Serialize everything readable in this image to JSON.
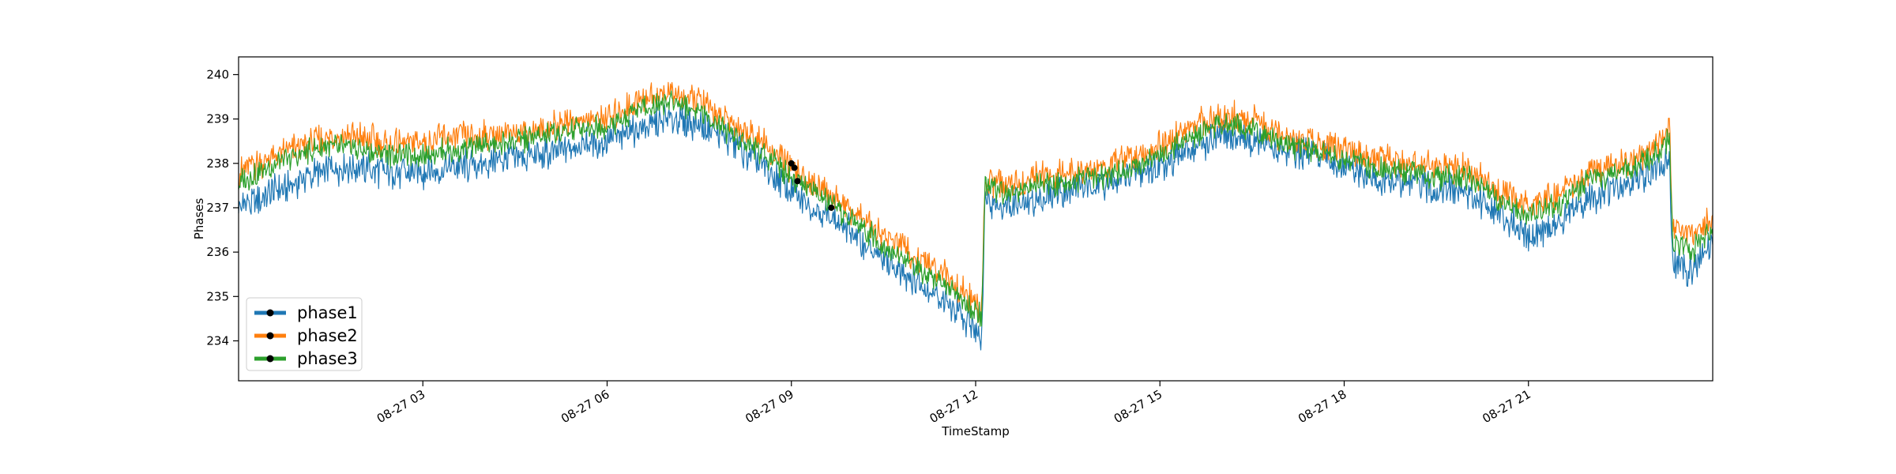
{
  "chart_data": {
    "type": "line",
    "title": "",
    "xlabel": "TimeStamp",
    "ylabel": "Phases",
    "xlim": [
      "08-27 00:00",
      "08-27 24:00"
    ],
    "ylim": [
      233.1,
      240.4
    ],
    "grid": false,
    "legend_position": "lower-left",
    "x_ticks": [
      {
        "label": "08-27 03",
        "hour": 3
      },
      {
        "label": "08-27 06",
        "hour": 6
      },
      {
        "label": "08-27 09",
        "hour": 9
      },
      {
        "label": "08-27 12",
        "hour": 12
      },
      {
        "label": "08-27 15",
        "hour": 15
      },
      {
        "label": "08-27 18",
        "hour": 18
      },
      {
        "label": "08-27 21",
        "hour": 21
      }
    ],
    "y_ticks": [
      234,
      235,
      236,
      237,
      238,
      239,
      240
    ],
    "x_hours": [
      0,
      0.5,
      1,
      1.5,
      2,
      2.5,
      3,
      3.5,
      4,
      4.5,
      5,
      5.5,
      6,
      6.5,
      7,
      7.5,
      8,
      8.5,
      9,
      9.5,
      10,
      10.5,
      11,
      11.5,
      12.1,
      12.15,
      12.5,
      13,
      13.5,
      14,
      14.5,
      15,
      15.5,
      16,
      16.5,
      17,
      17.5,
      18,
      18.5,
      19,
      19.5,
      20,
      20.5,
      21,
      21.5,
      22,
      22.5,
      23,
      23.3,
      23.35,
      23.7,
      24
    ],
    "series": [
      {
        "name": "phase1",
        "color": "#1f77b4",
        "values": [
          237.0,
          237.3,
          237.6,
          237.9,
          237.9,
          237.8,
          237.8,
          237.9,
          238.0,
          238.1,
          238.2,
          238.4,
          238.5,
          238.8,
          239.0,
          238.9,
          238.5,
          238.0,
          237.3,
          236.9,
          236.4,
          235.8,
          235.4,
          234.9,
          234.1,
          237.2,
          237.0,
          237.2,
          237.4,
          237.5,
          237.7,
          237.9,
          238.3,
          238.6,
          238.5,
          238.3,
          238.2,
          237.9,
          237.6,
          237.6,
          237.4,
          237.4,
          236.9,
          236.4,
          236.6,
          237.2,
          237.5,
          237.8,
          238.0,
          235.7,
          235.6,
          236.3
        ]
      },
      {
        "name": "phase2",
        "color": "#ff7f0e",
        "values": [
          237.8,
          238.1,
          238.4,
          238.6,
          238.6,
          238.4,
          238.5,
          238.6,
          238.6,
          238.7,
          238.8,
          239.0,
          239.0,
          239.4,
          239.6,
          239.4,
          238.9,
          238.5,
          237.9,
          237.4,
          236.9,
          236.4,
          235.9,
          235.5,
          234.7,
          237.6,
          237.5,
          237.7,
          237.8,
          237.9,
          238.1,
          238.4,
          238.8,
          239.1,
          239.0,
          238.6,
          238.5,
          238.3,
          238.1,
          238.0,
          237.9,
          237.9,
          237.4,
          237.0,
          237.3,
          237.8,
          238.0,
          238.3,
          238.8,
          236.5,
          236.4,
          236.8
        ]
      },
      {
        "name": "phase3",
        "color": "#2ca02c",
        "values": [
          237.6,
          237.9,
          238.2,
          238.4,
          238.3,
          238.2,
          238.2,
          238.3,
          238.4,
          238.5,
          238.6,
          238.8,
          238.8,
          239.2,
          239.4,
          239.2,
          238.7,
          238.3,
          237.7,
          237.2,
          236.7,
          236.2,
          235.7,
          235.3,
          234.5,
          237.5,
          237.3,
          237.5,
          237.6,
          237.7,
          237.9,
          238.2,
          238.6,
          238.9,
          238.8,
          238.4,
          238.3,
          238.1,
          237.9,
          237.8,
          237.7,
          237.7,
          237.2,
          236.8,
          237.1,
          237.6,
          237.8,
          238.1,
          238.6,
          236.2,
          236.1,
          236.6
        ]
      }
    ],
    "markers": [
      {
        "hour": 9.0,
        "value": 238.0
      },
      {
        "hour": 9.05,
        "value": 237.9
      },
      {
        "hour": 9.1,
        "value": 237.6
      },
      {
        "hour": 9.65,
        "value": 237.0
      }
    ]
  }
}
